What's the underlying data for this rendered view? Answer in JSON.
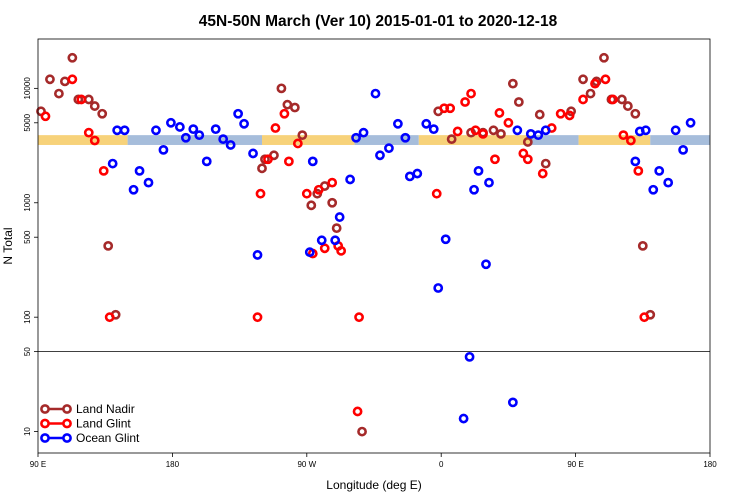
{
  "chart_data": {
    "type": "scatter",
    "title": "45N-50N March (Ver 10)   2015-01-01 to 2020-12-18",
    "xlabel": "Longitude (deg E)",
    "ylabel": "N Total",
    "x_axis": {
      "unit": "degrees longitude (unwrapped, 90E start, 0 to 450 in steps)",
      "ticks": [
        {
          "pos": 0,
          "label": "90 E"
        },
        {
          "pos": 90,
          "label": "180"
        },
        {
          "pos": 180,
          "label": "90 W"
        },
        {
          "pos": 270,
          "label": "0"
        },
        {
          "pos": 360,
          "label": "90 E"
        },
        {
          "pos": 450,
          "label": "180"
        }
      ],
      "range": [
        0,
        450
      ]
    },
    "y_axis": {
      "scale": "log",
      "range": [
        6.5,
        27000
      ],
      "ticks": [
        10,
        50,
        100,
        500,
        1000,
        5000,
        10000
      ],
      "reference_line": 50
    },
    "band": {
      "y_low": 3200,
      "y_high": 3900,
      "colors": {
        "land": "#f7d27a",
        "ocean": "#a6bddb"
      },
      "segments": [
        {
          "from": 0,
          "to": 60,
          "kind": "land"
        },
        {
          "from": 60,
          "to": 150,
          "kind": "ocean"
        },
        {
          "from": 150,
          "to": 212,
          "kind": "land"
        },
        {
          "from": 212,
          "to": 255,
          "kind": "ocean"
        },
        {
          "from": 255,
          "to": 330,
          "kind": "land"
        },
        {
          "from": 330,
          "to": 362,
          "kind": "ocean"
        },
        {
          "from": 362,
          "to": 410,
          "kind": "land"
        },
        {
          "from": 410,
          "to": 450,
          "kind": "ocean"
        }
      ]
    },
    "legend": {
      "placement": "bottom-left",
      "entries": [
        {
          "name": "Land Nadir",
          "color": "#a52a2a"
        },
        {
          "name": "Land Glint",
          "color": "#ff0000"
        },
        {
          "name": "Ocean Glint",
          "color": "#0000ff"
        }
      ]
    },
    "series": [
      {
        "name": "Land Nadir",
        "color": "#a52a2a",
        "points": [
          [
            2,
            6300
          ],
          [
            8,
            12000
          ],
          [
            14,
            9000
          ],
          [
            18,
            11500
          ],
          [
            23,
            18500
          ],
          [
            27,
            8000
          ],
          [
            34,
            8000
          ],
          [
            38,
            7000
          ],
          [
            43,
            6000
          ],
          [
            47,
            420
          ],
          [
            52,
            105
          ],
          [
            150,
            2000
          ],
          [
            152,
            2400
          ],
          [
            158,
            2600
          ],
          [
            163,
            10000
          ],
          [
            167,
            7200
          ],
          [
            172,
            6800
          ],
          [
            177,
            3900
          ],
          [
            183,
            950
          ],
          [
            187,
            1200
          ],
          [
            192,
            1400
          ],
          [
            197,
            1000
          ],
          [
            200,
            600
          ],
          [
            217,
            10
          ],
          [
            268,
            6300
          ],
          [
            277,
            3600
          ],
          [
            290,
            4100
          ],
          [
            298,
            4100
          ],
          [
            305,
            4300
          ],
          [
            310,
            4000
          ],
          [
            318,
            11000
          ],
          [
            322,
            7600
          ],
          [
            328,
            3400
          ],
          [
            336,
            5900
          ],
          [
            340,
            2200
          ],
          [
            357,
            6300
          ],
          [
            365,
            12000
          ],
          [
            370,
            9000
          ],
          [
            374,
            11500
          ],
          [
            379,
            18500
          ],
          [
            384,
            8000
          ],
          [
            391,
            8000
          ],
          [
            395,
            7000
          ],
          [
            400,
            6000
          ],
          [
            405,
            420
          ],
          [
            410,
            105
          ]
        ]
      },
      {
        "name": "Land Glint",
        "color": "#ff0000",
        "points": [
          [
            5,
            5700
          ],
          [
            23,
            12000
          ],
          [
            29,
            8000
          ],
          [
            34,
            4100
          ],
          [
            38,
            3500
          ],
          [
            44,
            1900
          ],
          [
            48,
            100
          ],
          [
            147,
            100
          ],
          [
            149,
            1200
          ],
          [
            154,
            2400
          ],
          [
            159,
            4500
          ],
          [
            165,
            6000
          ],
          [
            168,
            2300
          ],
          [
            174,
            3300
          ],
          [
            180,
            1200
          ],
          [
            184,
            360
          ],
          [
            188,
            1300
          ],
          [
            192,
            400
          ],
          [
            197,
            1500
          ],
          [
            201,
            420
          ],
          [
            203,
            380
          ],
          [
            214,
            15
          ],
          [
            215,
            100
          ],
          [
            267,
            1200
          ],
          [
            272,
            6700
          ],
          [
            276,
            6700
          ],
          [
            281,
            4200
          ],
          [
            286,
            7600
          ],
          [
            290,
            9000
          ],
          [
            293,
            4300
          ],
          [
            298,
            4000
          ],
          [
            306,
            2400
          ],
          [
            309,
            6100
          ],
          [
            315,
            5000
          ],
          [
            325,
            2700
          ],
          [
            328,
            2400
          ],
          [
            338,
            1800
          ],
          [
            344,
            4500
          ],
          [
            350,
            6000
          ],
          [
            356,
            5800
          ],
          [
            365,
            8000
          ],
          [
            373,
            11000
          ],
          [
            380,
            12000
          ],
          [
            385,
            8000
          ],
          [
            392,
            3900
          ],
          [
            397,
            3500
          ],
          [
            402,
            1900
          ],
          [
            406,
            100
          ]
        ]
      },
      {
        "name": "Ocean Glint",
        "color": "#0000ff",
        "points": [
          [
            50,
            2200
          ],
          [
            53,
            4300
          ],
          [
            58,
            4300
          ],
          [
            64,
            1300
          ],
          [
            68,
            1900
          ],
          [
            74,
            1500
          ],
          [
            79,
            4300
          ],
          [
            84,
            2900
          ],
          [
            89,
            5000
          ],
          [
            95,
            4600
          ],
          [
            99,
            3700
          ],
          [
            104,
            4400
          ],
          [
            108,
            3900
          ],
          [
            113,
            2300
          ],
          [
            119,
            4400
          ],
          [
            124,
            3600
          ],
          [
            129,
            3200
          ],
          [
            134,
            6000
          ],
          [
            138,
            4900
          ],
          [
            144,
            2700
          ],
          [
            147,
            350
          ],
          [
            182,
            370
          ],
          [
            184,
            2300
          ],
          [
            190,
            470
          ],
          [
            199,
            470
          ],
          [
            202,
            750
          ],
          [
            209,
            1600
          ],
          [
            213,
            3700
          ],
          [
            218,
            4100
          ],
          [
            226,
            9000
          ],
          [
            229,
            2600
          ],
          [
            235,
            3000
          ],
          [
            241,
            4900
          ],
          [
            246,
            3700
          ],
          [
            249,
            1700
          ],
          [
            254,
            1800
          ],
          [
            260,
            4900
          ],
          [
            265,
            4400
          ],
          [
            268,
            180
          ],
          [
            273,
            480
          ],
          [
            285,
            13
          ],
          [
            289,
            45
          ],
          [
            292,
            1300
          ],
          [
            295,
            1900
          ],
          [
            300,
            290
          ],
          [
            302,
            1500
          ],
          [
            318,
            18
          ],
          [
            321,
            4300
          ],
          [
            330,
            4000
          ],
          [
            335,
            3900
          ],
          [
            340,
            4300
          ],
          [
            400,
            2300
          ],
          [
            403,
            4200
          ],
          [
            407,
            4300
          ],
          [
            412,
            1300
          ],
          [
            416,
            1900
          ],
          [
            422,
            1500
          ],
          [
            427,
            4300
          ],
          [
            432,
            2900
          ],
          [
            437,
            5000
          ]
        ]
      }
    ]
  }
}
